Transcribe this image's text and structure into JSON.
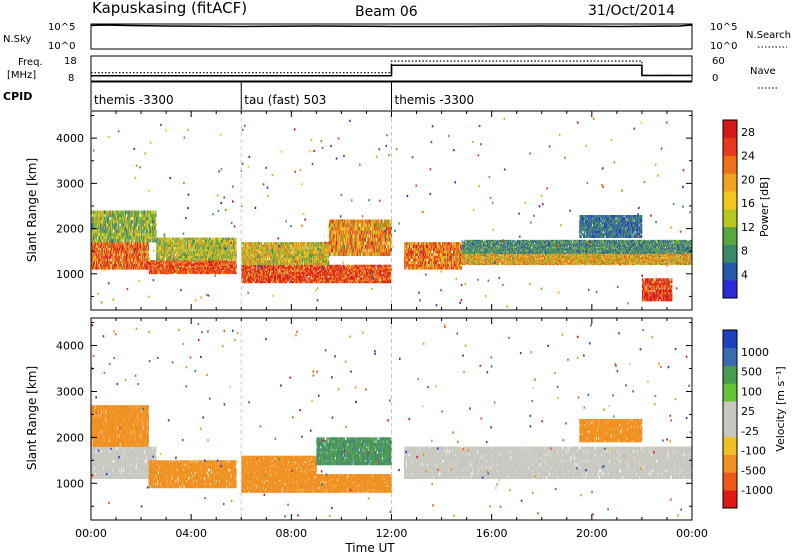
{
  "header": {
    "title": "Kapuskasing (fitACF)",
    "beam": "Beam 06",
    "date": "31/Oct/2014"
  },
  "noise_panel": {
    "left_label": "N.Sky",
    "right_label": "N.Search",
    "left_ticks": [
      "10^5",
      "10^0"
    ],
    "right_ticks": [
      "10^5",
      "10^0"
    ]
  },
  "freq_panel": {
    "left_label_1": "Freq.",
    "left_label_2": "[MHz]",
    "right_label": "Nave",
    "left_ticks": [
      "18",
      "8"
    ],
    "right_ticks": [
      "60",
      "0"
    ]
  },
  "cpid_panel": {
    "label": "CPID",
    "segments": [
      {
        "name": "themis -3300",
        "start": 0,
        "end": 6
      },
      {
        "name": "tau (fast) 503",
        "start": 6,
        "end": 12
      },
      {
        "name": "themis -3300",
        "start": 12,
        "end": 24
      }
    ]
  },
  "colors": {
    "power": [
      "#2a2ad8",
      "#2a58a8",
      "#3a8a6a",
      "#5aa640",
      "#b8c820",
      "#f2c81e",
      "#f2a020",
      "#f07018",
      "#e83a1a",
      "#d81818"
    ],
    "velocity": [
      "#2040c0",
      "#3a6ab0",
      "#4a9a50",
      "#66c236",
      "#c8c8c0",
      "#c8c8c0",
      "#f0c028",
      "#f09020",
      "#f05818",
      "#e01818"
    ],
    "ground": "#c8c8c0",
    "axis": "#000000",
    "grid_dash": "#c8c8c8"
  },
  "chart_data": [
    {
      "type": "heatmap",
      "name": "Power",
      "ylabel": "Slant Range [km]",
      "xlim": [
        0,
        24
      ],
      "ylim": [
        200,
        4600
      ],
      "yticks": [
        "1000",
        "2000",
        "3000",
        "4000"
      ],
      "colorbar": {
        "label": "Power [dB]",
        "ticks": [
          "4",
          "8",
          "12",
          "16",
          "20",
          "24",
          "28"
        ],
        "range": [
          0,
          30
        ]
      },
      "regions": [
        {
          "t": [
            0.0,
            2.3
          ],
          "r": [
            1100,
            1700
          ],
          "v": 24
        },
        {
          "t": [
            0.0,
            2.6
          ],
          "r": [
            1700,
            2400
          ],
          "v": 12
        },
        {
          "t": [
            2.3,
            5.8
          ],
          "r": [
            1000,
            1300
          ],
          "v": 26
        },
        {
          "t": [
            2.6,
            5.8
          ],
          "r": [
            1300,
            1800
          ],
          "v": 14
        },
        {
          "t": [
            6.0,
            12.0
          ],
          "r": [
            800,
            1200
          ],
          "v": 27
        },
        {
          "t": [
            6.0,
            9.5
          ],
          "r": [
            1200,
            1700
          ],
          "v": 16
        },
        {
          "t": [
            9.5,
            12.0
          ],
          "r": [
            1400,
            2200
          ],
          "v": 20
        },
        {
          "t": [
            12.5,
            14.8
          ],
          "r": [
            1100,
            1700
          ],
          "v": 22
        },
        {
          "t": [
            14.8,
            24.0
          ],
          "r": [
            1200,
            1450
          ],
          "v": 18
        },
        {
          "t": [
            14.8,
            24.0
          ],
          "r": [
            1450,
            1750
          ],
          "v": 8
        },
        {
          "t": [
            22.0,
            23.2
          ],
          "r": [
            400,
            900
          ],
          "v": 29
        },
        {
          "t": [
            19.5,
            22.0
          ],
          "r": [
            1800,
            2300
          ],
          "v": 6
        }
      ]
    },
    {
      "type": "heatmap",
      "name": "Velocity",
      "ylabel": "Slant Range [km]",
      "xlabel": "Time UT",
      "xlim": [
        0,
        24
      ],
      "ylim": [
        200,
        4600
      ],
      "yticks": [
        "1000",
        "2000",
        "3000",
        "4000"
      ],
      "xticks": [
        "00:00",
        "04:00",
        "08:00",
        "12:00",
        "16:00",
        "20:00",
        "00:00"
      ],
      "colorbar": {
        "label": "Velocity [m s⁻¹]",
        "ticks": [
          "1000",
          "500",
          "100",
          "25",
          "-25",
          "-100",
          "-500",
          "-1000"
        ],
        "range": [
          -1000,
          1000
        ]
      },
      "regions": [
        {
          "t": [
            0.0,
            2.6
          ],
          "r": [
            1100,
            1800
          ],
          "v": 0
        },
        {
          "t": [
            0.0,
            2.3
          ],
          "r": [
            1800,
            2700
          ],
          "v": -300
        },
        {
          "t": [
            2.3,
            5.8
          ],
          "r": [
            900,
            1500
          ],
          "v": -300
        },
        {
          "t": [
            6.0,
            12.0
          ],
          "r": [
            800,
            1200
          ],
          "v": -200
        },
        {
          "t": [
            6.0,
            9.0
          ],
          "r": [
            1200,
            1600
          ],
          "v": -150
        },
        {
          "t": [
            9.0,
            12.0
          ],
          "r": [
            1400,
            2000
          ],
          "v": 80
        },
        {
          "t": [
            12.5,
            24.0
          ],
          "r": [
            1100,
            1800
          ],
          "v": 0
        },
        {
          "t": [
            19.5,
            22.0
          ],
          "r": [
            1900,
            2400
          ],
          "v": -200
        }
      ]
    }
  ],
  "noise_series": {
    "x": [
      0,
      0.5,
      1.5,
      3,
      6,
      9,
      12,
      15,
      18,
      21,
      23.5,
      24
    ],
    "n_sky_log": [
      4.7,
      4.8,
      4.7,
      4.6,
      4.5,
      4.6,
      4.5,
      4.5,
      4.6,
      4.5,
      4.6,
      4.8
    ]
  },
  "freq_series": {
    "x": [
      0,
      6,
      6,
      12,
      12,
      22,
      22,
      24
    ],
    "freq_mhz": [
      10.1,
      10.1,
      10.1,
      10.1,
      14.3,
      14.3,
      10.2,
      10.2
    ],
    "nave": [
      20,
      20,
      20,
      20,
      48,
      48,
      14,
      14
    ]
  }
}
